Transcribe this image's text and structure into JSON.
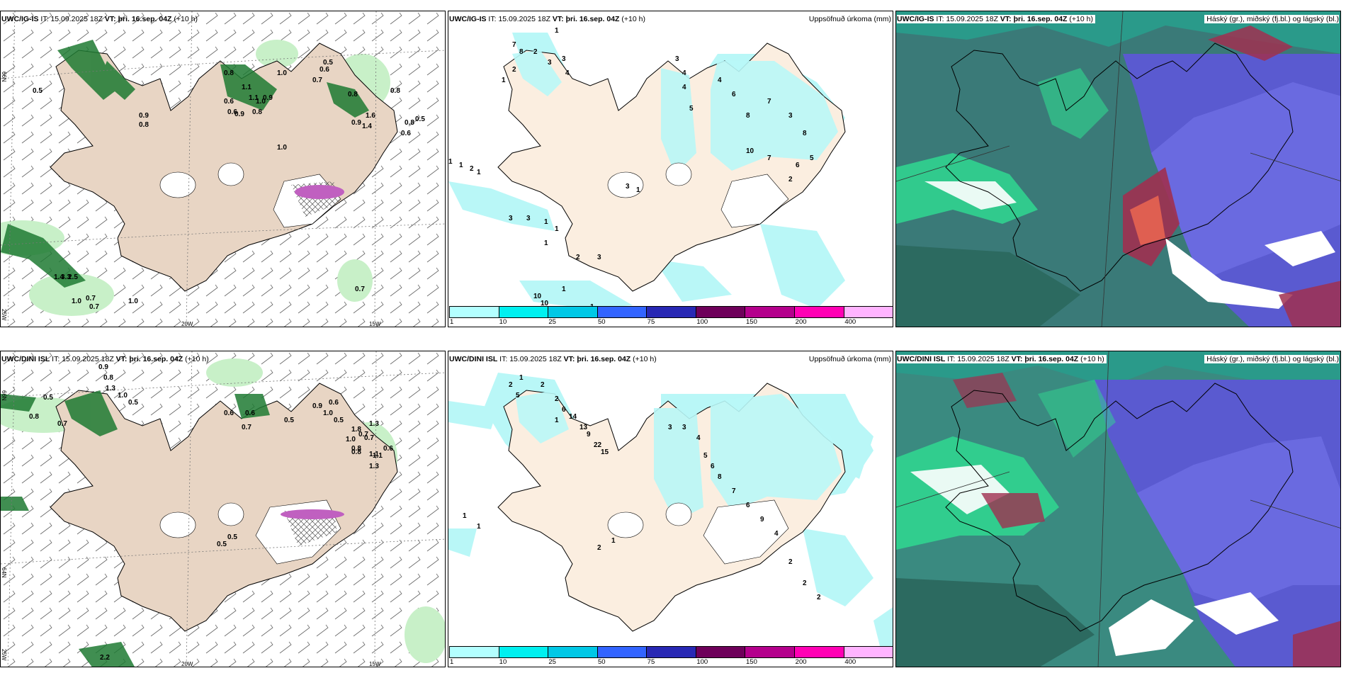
{
  "rows": [
    {
      "model": "UWC/IG-IS",
      "it_label": "IT:",
      "it_value": "15.09.2025 18Z",
      "vt_label": "VT:",
      "vt_value": "þri. 16.sep. 04Z",
      "lead": "(+10 h)"
    },
    {
      "model": "UWC/DINI ISL",
      "it_label": "IT:",
      "it_value": "15.09.2025 18Z",
      "vt_label": "VT:",
      "vt_value": "þri. 16.sep. 04Z",
      "lead": "(+10 h)"
    }
  ],
  "precip_title": "Uppsöfnuð úrkoma (mm)",
  "cloud_title": "Háský (gr.), miðský (fj.bl.) og lágský (bl.)",
  "axis_labels": {
    "lat_66": "66N",
    "lat_64": "64N",
    "lon_25": "25W",
    "lon_20": "20W",
    "lon_15": "15W"
  },
  "legend": {
    "ticks": [
      "1",
      "10",
      "25",
      "50",
      "75",
      "100",
      "150",
      "200",
      "400"
    ],
    "colors": [
      "#b3ffff",
      "#00f0f0",
      "#00c8e6",
      "#3264ff",
      "#2828b4",
      "#6e005a",
      "#b4008c",
      "#ff00b4",
      "#ffb4ff"
    ]
  },
  "colors": {
    "land": "#fbeee0",
    "land_left": "#e8d5c4",
    "coast": "#000000",
    "green_light": "#c8f0c8",
    "green_mid": "#7ad17a",
    "green_dark": "#1e7a32",
    "cyan_precip": "#b9f7f7",
    "cloud_blue": "#5a5ad0",
    "cloud_teal": "#2a9a8a",
    "cloud_green": "#30d890",
    "cloud_red": "#a03050"
  },
  "wind_labels_top": [
    "0.5",
    "0.8",
    "0.9",
    "0.6",
    "0.8",
    "1.0",
    "0.9",
    "1.1",
    "0.8",
    "1.0",
    "0.5",
    "0.7",
    "0.9",
    "1.6",
    "1.4",
    "0.6",
    "0.5",
    "0.6",
    "1.0",
    "0.8",
    "0.8",
    "0.6",
    "0.9",
    "1.1",
    "0.8",
    "1.4",
    "3.3",
    "2.5",
    "1.0",
    "0.7",
    "0.7",
    "1.0",
    "0.7"
  ],
  "wind_labels_bottom": [
    "0.9",
    "0.8",
    "1.3",
    "1.0",
    "0.5",
    "0.5",
    "0.8",
    "0.7",
    "0.6",
    "0.6",
    "0.7",
    "0.8",
    "0.5",
    "0.9",
    "0.6",
    "1.0",
    "0.5",
    "1.3",
    "1.8",
    "0.7",
    "1.0",
    "1.1",
    "0.6",
    "1.3",
    "0.7",
    "1.1",
    "0.8",
    "0.5",
    "0.5",
    "2.2"
  ],
  "precip_labels_top": [
    "1",
    "7",
    "8",
    "2",
    "3",
    "3",
    "1",
    "2",
    "4",
    "3",
    "4",
    "4",
    "5",
    "4",
    "6",
    "8",
    "7",
    "3",
    "8",
    "10",
    "7",
    "6",
    "5",
    "2",
    "1",
    "1",
    "2",
    "1",
    "3",
    "3",
    "1",
    "1",
    "10",
    "10",
    "1",
    "1",
    "2",
    "3",
    "3",
    "1",
    "1"
  ],
  "precip_labels_bottom": [
    "1",
    "2",
    "2",
    "6",
    "14",
    "13",
    "9",
    "22",
    "15",
    "2",
    "5",
    "1",
    "3",
    "3",
    "4",
    "5",
    "6",
    "8",
    "7",
    "6",
    "9",
    "4",
    "2",
    "2",
    "2",
    "1",
    "1",
    "2",
    "1"
  ]
}
